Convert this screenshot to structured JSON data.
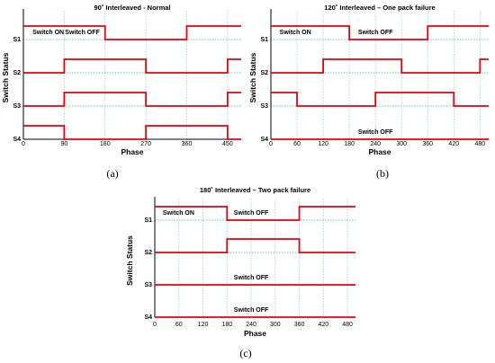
{
  "chart_data": [
    {
      "type": "line",
      "title": "90˚ Interleaved - Normal",
      "xlabel": "Phase",
      "ylabel": "Switch Status",
      "caption": "(a)",
      "xlim": [
        0,
        480
      ],
      "x_ticks": [
        0,
        90,
        180,
        270,
        360,
        450
      ],
      "vgrid": [
        90,
        180,
        270,
        360,
        450
      ],
      "rows": [
        "S1",
        "S2",
        "S3",
        "S4"
      ],
      "annotations": [
        {
          "text": "Switch ON",
          "x": 20,
          "row": "S1"
        },
        {
          "text": "Switch OFF",
          "x": 130,
          "row": "S1"
        }
      ],
      "series": [
        {
          "name": "S1",
          "x": [
            0,
            180,
            180,
            360,
            360,
            480
          ],
          "y": [
            1,
            1,
            0,
            0,
            1,
            1
          ]
        },
        {
          "name": "S2",
          "x": [
            0,
            90,
            90,
            270,
            270,
            450,
            450,
            480
          ],
          "y": [
            0,
            0,
            1,
            1,
            0,
            0,
            1,
            1
          ]
        },
        {
          "name": "S3",
          "x": [
            0,
            90,
            90,
            270,
            270,
            450,
            450,
            480
          ],
          "y": [
            0,
            0,
            1,
            1,
            0,
            0,
            1,
            1
          ]
        },
        {
          "name": "S4",
          "x": [
            0,
            90,
            90,
            270,
            270,
            450,
            450,
            480
          ],
          "y": [
            1,
            1,
            0,
            0,
            1,
            1,
            0,
            0
          ]
        }
      ]
    },
    {
      "type": "line",
      "title": "120˚ Interleaved – One pack failure",
      "xlabel": "Phase",
      "ylabel": "Switch Status",
      "caption": "(b)",
      "xlim": [
        0,
        500
      ],
      "x_ticks": [
        0,
        60,
        120,
        180,
        240,
        300,
        360,
        420,
        480
      ],
      "vgrid": [
        60,
        120,
        180,
        240,
        300,
        360,
        420,
        480
      ],
      "rows": [
        "S1",
        "S2",
        "S3",
        "S4"
      ],
      "annotations": [
        {
          "text": "Switch ON",
          "x": 20,
          "row": "S1"
        },
        {
          "text": "Switch OFF",
          "x": 240,
          "row": "S1"
        },
        {
          "text": "Switch OFF",
          "x": 240,
          "row": "S4"
        }
      ],
      "series": [
        {
          "name": "S1",
          "x": [
            0,
            180,
            180,
            360,
            360,
            500
          ],
          "y": [
            1,
            1,
            0,
            0,
            1,
            1
          ]
        },
        {
          "name": "S2",
          "x": [
            0,
            120,
            120,
            300,
            300,
            480,
            480,
            500
          ],
          "y": [
            0,
            0,
            1,
            1,
            0,
            0,
            1,
            1
          ]
        },
        {
          "name": "S3",
          "x": [
            0,
            60,
            60,
            240,
            240,
            420,
            420,
            500
          ],
          "y": [
            1,
            1,
            0,
            0,
            1,
            1,
            0,
            0
          ]
        },
        {
          "name": "S4",
          "x": [
            0,
            500
          ],
          "y": [
            0,
            0
          ]
        }
      ]
    },
    {
      "type": "line",
      "title": "180˚ Interleaved – Two pack failure",
      "xlabel": "Phase",
      "ylabel": "Switch Status",
      "caption": "(c)",
      "xlim": [
        0,
        500
      ],
      "x_ticks": [
        0,
        60,
        120,
        180,
        240,
        300,
        360,
        420,
        480
      ],
      "vgrid": [
        60,
        120,
        180,
        240,
        300,
        360,
        420,
        480
      ],
      "rows": [
        "S1",
        "S2",
        "S3",
        "S4"
      ],
      "annotations": [
        {
          "text": "Switch ON",
          "x": 20,
          "row": "S1"
        },
        {
          "text": "Switch OFF",
          "x": 240,
          "row": "S1"
        },
        {
          "text": "Switch OFF",
          "x": 240,
          "row": "S3"
        },
        {
          "text": "Switch OFF",
          "x": 240,
          "row": "S4"
        }
      ],
      "series": [
        {
          "name": "S1",
          "x": [
            0,
            180,
            180,
            360,
            360,
            500
          ],
          "y": [
            1,
            1,
            0,
            0,
            1,
            1
          ]
        },
        {
          "name": "S2",
          "x": [
            0,
            180,
            180,
            360,
            360,
            500
          ],
          "y": [
            0,
            0,
            1,
            1,
            0,
            0
          ]
        },
        {
          "name": "S3",
          "x": [
            0,
            500
          ],
          "y": [
            0,
            0
          ]
        },
        {
          "name": "S4",
          "x": [
            0,
            500
          ],
          "y": [
            0,
            0
          ]
        }
      ]
    }
  ],
  "colors": {
    "signal": "#e8000b",
    "baseline": "#34b38a",
    "vgrid": "#8ec3e6",
    "axis": "#000000"
  }
}
